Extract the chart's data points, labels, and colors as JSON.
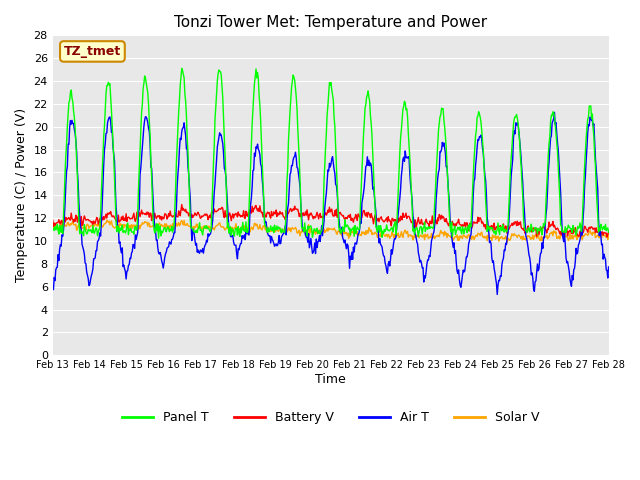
{
  "title": "Tonzi Tower Met: Temperature and Power",
  "xlabel": "Time",
  "ylabel": "Temperature (C) / Power (V)",
  "ylim": [
    0,
    28
  ],
  "yticks": [
    0,
    2,
    4,
    6,
    8,
    10,
    12,
    14,
    16,
    18,
    20,
    22,
    24,
    26,
    28
  ],
  "bg_color": "#e8e8e8",
  "fig_color": "#ffffff",
  "tz_label": "TZ_tmet",
  "legend_labels": [
    "Panel T",
    "Battery V",
    "Air T",
    "Solar V"
  ],
  "legend_colors": [
    "#00ff00",
    "#ff0000",
    "#0000ff",
    "#ffa500"
  ],
  "x_tick_labels": [
    "Feb 13",
    "Feb 14",
    "Feb 15",
    "Feb 16",
    "Feb 17",
    "Feb 18",
    "Feb 19",
    "Feb 20",
    "Feb 21",
    "Feb 22",
    "Feb 23",
    "Feb 24",
    "Feb 25",
    "Feb 26",
    "Feb 27",
    "Feb 28"
  ],
  "n_days": 15,
  "pts_per_day": 48
}
